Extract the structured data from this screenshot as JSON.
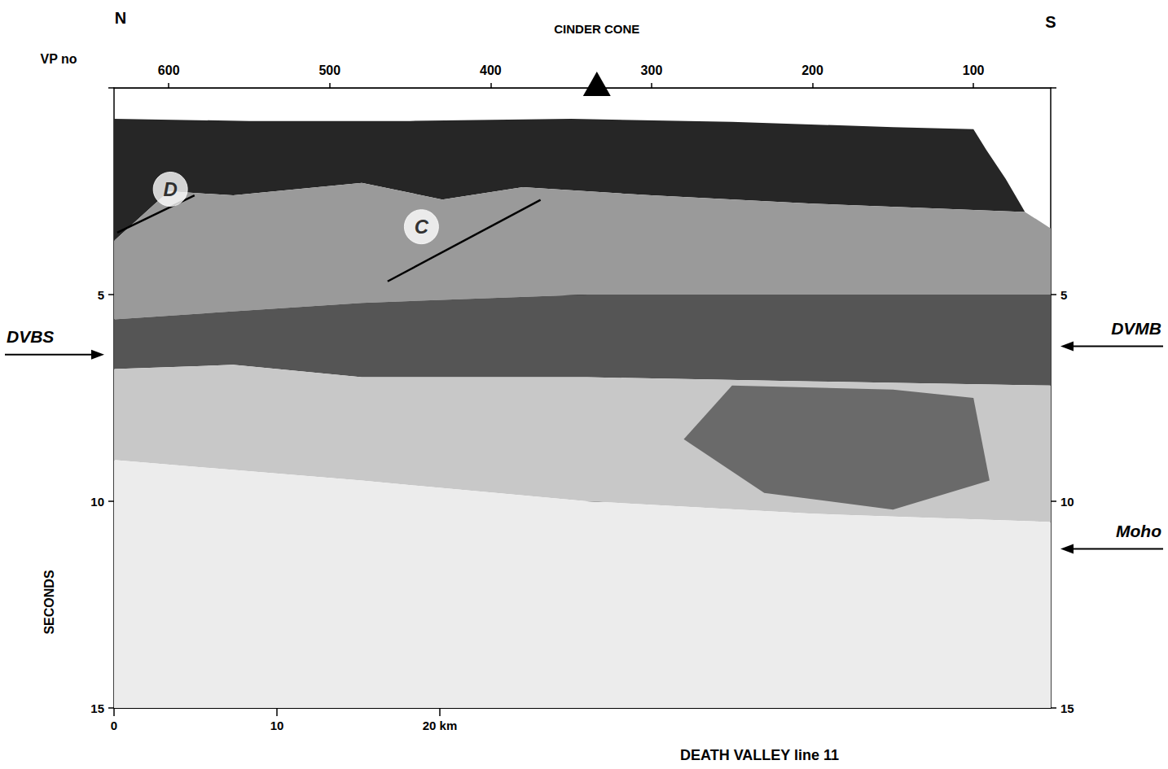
{
  "chart_data": {
    "type": "seismic_section",
    "title": "DEATH VALLEY line 11",
    "directions": {
      "left": "N",
      "right": "S"
    },
    "x_top": {
      "label": "VP no",
      "xlim": [
        634,
        52
      ],
      "xticks": [
        600,
        500,
        400,
        300,
        200,
        100
      ]
    },
    "x_bottom": {
      "xlim": [
        0,
        57.5
      ],
      "xticks": [
        0,
        10,
        {
          "value": 20,
          "label": "20 km"
        }
      ]
    },
    "y": {
      "label": "SECONDS",
      "ylim": [
        0,
        15
      ],
      "yticks": [
        5,
        10,
        15
      ]
    },
    "grid": true,
    "markers": [
      {
        "label": "CINDER CONE",
        "x": 334,
        "marker": "triangle"
      }
    ],
    "annotations": [
      {
        "text": "DVBS",
        "side": "left",
        "y": 6.45
      },
      {
        "text": "DVMB",
        "side": "right",
        "y": 6.25
      },
      {
        "text": "Moho",
        "side": "right",
        "y": 11.15
      }
    ],
    "features": [
      {
        "label": "D",
        "x": [
          632,
          584
        ],
        "y": [
          3.5,
          2.6
        ],
        "label_x": 599,
        "label_y": 2.45
      },
      {
        "label": "C",
        "x": [
          464,
          369
        ],
        "y": [
          4.68,
          2.71
        ],
        "label_x": 443,
        "label_y": 3.36
      }
    ],
    "regions": [
      {
        "color": "#262626",
        "points": [
          [
            634,
            0.75
          ],
          [
            550,
            0.8
          ],
          [
            450,
            0.8
          ],
          [
            350,
            0.75
          ],
          [
            250,
            0.82
          ],
          [
            150,
            0.95
          ],
          [
            100,
            1.0
          ],
          [
            92,
            1.5
          ],
          [
            80,
            2.2
          ],
          [
            68,
            3.0
          ],
          [
            200,
            2.8
          ],
          [
            300,
            2.6
          ],
          [
            380,
            2.4
          ],
          [
            430,
            2.7
          ],
          [
            480,
            2.3
          ],
          [
            560,
            2.6
          ],
          [
            600,
            2.5
          ],
          [
            634,
            3.7
          ]
        ]
      },
      {
        "color": "#9a9a9a",
        "points": [
          [
            634,
            3.7
          ],
          [
            600,
            2.5
          ],
          [
            560,
            2.6
          ],
          [
            480,
            2.3
          ],
          [
            430,
            2.7
          ],
          [
            380,
            2.4
          ],
          [
            300,
            2.6
          ],
          [
            200,
            2.8
          ],
          [
            68,
            3.0
          ],
          [
            52,
            3.4
          ],
          [
            52,
            5.0
          ],
          [
            340,
            5.0
          ],
          [
            480,
            5.2
          ],
          [
            634,
            5.6
          ]
        ]
      },
      {
        "color": "#555555",
        "points": [
          [
            634,
            5.6
          ],
          [
            480,
            5.2
          ],
          [
            340,
            5.0
          ],
          [
            52,
            5.0
          ],
          [
            52,
            7.2
          ],
          [
            200,
            7.1
          ],
          [
            340,
            7.0
          ],
          [
            480,
            7.0
          ],
          [
            560,
            6.7
          ],
          [
            634,
            6.8
          ]
        ]
      },
      {
        "color": "#c8c8c8",
        "points": [
          [
            634,
            6.8
          ],
          [
            560,
            6.7
          ],
          [
            480,
            7.0
          ],
          [
            340,
            7.0
          ],
          [
            200,
            7.1
          ],
          [
            52,
            7.2
          ],
          [
            52,
            10.5
          ],
          [
            200,
            10.3
          ],
          [
            340,
            10.0
          ],
          [
            480,
            9.5
          ],
          [
            634,
            9.0
          ]
        ]
      },
      {
        "color": "#6a6a6a",
        "points": [
          [
            250,
            7.2
          ],
          [
            150,
            7.3
          ],
          [
            100,
            7.5
          ],
          [
            90,
            9.5
          ],
          [
            150,
            10.2
          ],
          [
            230,
            9.8
          ],
          [
            280,
            8.5
          ]
        ]
      },
      {
        "color": "#ececec",
        "points": [
          [
            634,
            9.0
          ],
          [
            480,
            9.5
          ],
          [
            340,
            10.0
          ],
          [
            200,
            10.3
          ],
          [
            52,
            10.5
          ],
          [
            52,
            15
          ],
          [
            634,
            15
          ]
        ]
      }
    ]
  }
}
